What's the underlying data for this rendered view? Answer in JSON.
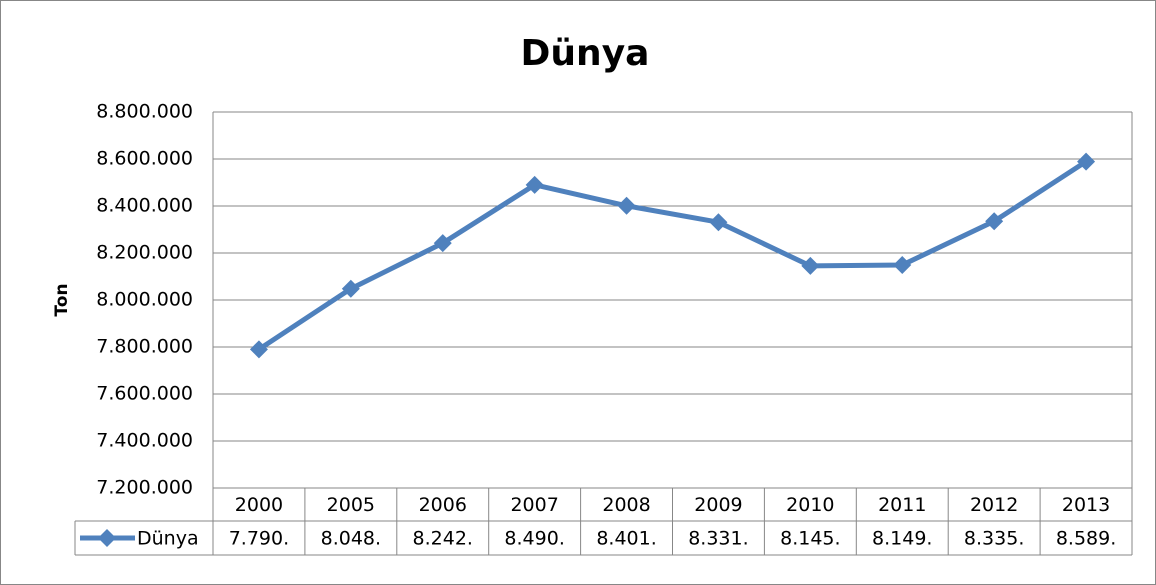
{
  "chart_data": {
    "type": "line",
    "title": "Dünya",
    "y_label": "Ton",
    "categories": [
      "2000",
      "2005",
      "2006",
      "2007",
      "2008",
      "2009",
      "2010",
      "2011",
      "2012",
      "2013"
    ],
    "series": [
      {
        "name": "Dünya",
        "color": "#4f81bd",
        "values": [
          7790000,
          8048000,
          8242000,
          8490000,
          8401000,
          8331000,
          8145000,
          8149000,
          8335000,
          8589000
        ],
        "value_labels": [
          "7.790.",
          "8.048.",
          "8.242.",
          "8.490.",
          "8.401.",
          "8.331.",
          "8.145.",
          "8.149.",
          "8.335.",
          "8.589."
        ]
      }
    ],
    "ylim": [
      7200000,
      8800000
    ],
    "yticks": [
      {
        "value": 7200000,
        "label": "7.200.000"
      },
      {
        "value": 7400000,
        "label": "7.400.000"
      },
      {
        "value": 7600000,
        "label": "7.600.000"
      },
      {
        "value": 7800000,
        "label": "7.800.000"
      },
      {
        "value": 8000000,
        "label": "8.000.000"
      },
      {
        "value": 8200000,
        "label": "8.200.000"
      },
      {
        "value": 8400000,
        "label": "8.400.000"
      },
      {
        "value": 8600000,
        "label": "8.600.000"
      },
      {
        "value": 8800000,
        "label": "8.800.000"
      }
    ],
    "grid": true
  }
}
